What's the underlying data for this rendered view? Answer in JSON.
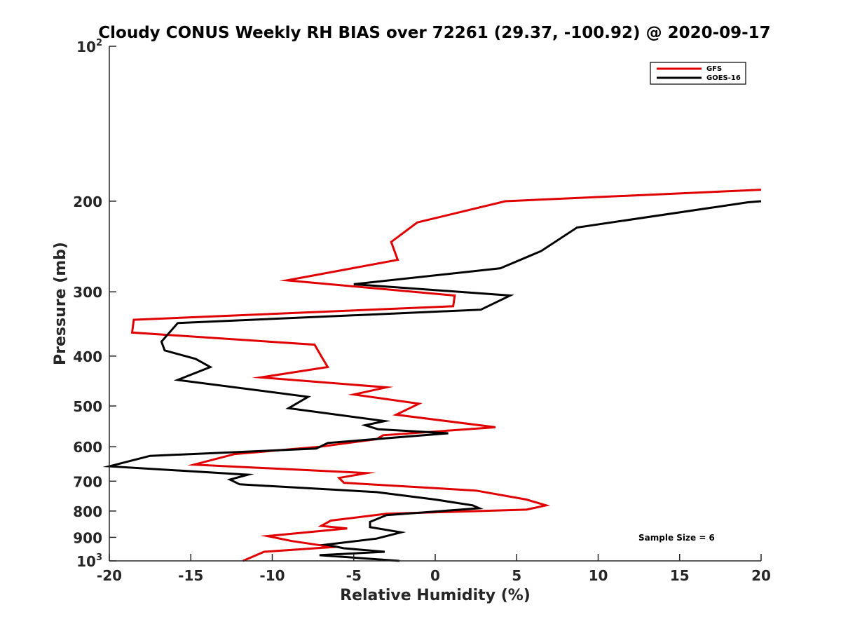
{
  "chart_data": {
    "type": "line",
    "title": "Cloudy CONUS Weekly RH BIAS over 72261 (29.37, -100.92) @ 2020-09-17",
    "xlabel": "Relative Humidity (%)",
    "ylabel": "Pressure (mb)",
    "xlim": [
      -20,
      20
    ],
    "ylim": [
      100,
      1000
    ],
    "y_scale": "log",
    "y_reversed": true,
    "grid": false,
    "legend_position": "top-right",
    "x_ticks": [
      "-20",
      "-15",
      "-10",
      "-5",
      "0",
      "5",
      "10",
      "15",
      "20"
    ],
    "y_ticks": [
      {
        "value": 100,
        "label_base": "10",
        "label_exp": "2"
      },
      {
        "value": 200,
        "label_base": "200",
        "label_exp": ""
      },
      {
        "value": 300,
        "label_base": "300",
        "label_exp": ""
      },
      {
        "value": 400,
        "label_base": "400",
        "label_exp": ""
      },
      {
        "value": 500,
        "label_base": "500",
        "label_exp": ""
      },
      {
        "value": 600,
        "label_base": "600",
        "label_exp": ""
      },
      {
        "value": 700,
        "label_base": "700",
        "label_exp": ""
      },
      {
        "value": 800,
        "label_base": "800",
        "label_exp": ""
      },
      {
        "value": 900,
        "label_base": "900",
        "label_exp": ""
      },
      {
        "value": 1000,
        "label_base": "10",
        "label_exp": "3"
      }
    ],
    "annotation": "Sample Size = 6",
    "series": [
      {
        "name": "GFS",
        "color": "#e00000",
        "points": [
          [
            20,
            190
          ],
          [
            4.3,
            200
          ],
          [
            -1.1,
            220
          ],
          [
            -2.7,
            240
          ],
          [
            -2.3,
            260
          ],
          [
            -9.1,
            285
          ],
          [
            1.2,
            305
          ],
          [
            1.1,
            320
          ],
          [
            -18.5,
            340
          ],
          [
            -18.6,
            360
          ],
          [
            -7.4,
            380
          ],
          [
            -7.0,
            400
          ],
          [
            -6.6,
            420
          ],
          [
            -10.7,
            440
          ],
          [
            -3.0,
            460
          ],
          [
            -5.0,
            475
          ],
          [
            -1.0,
            495
          ],
          [
            -2.4,
            520
          ],
          [
            3.7,
            550
          ],
          [
            -3.2,
            570
          ],
          [
            -3.6,
            580
          ],
          [
            -7.1,
            600
          ],
          [
            -12.3,
            620
          ],
          [
            -14.8,
            650
          ],
          [
            -4.2,
            675
          ],
          [
            -5.9,
            690
          ],
          [
            -5.6,
            705
          ],
          [
            2.5,
            730
          ],
          [
            5.6,
            760
          ],
          [
            6.8,
            780
          ],
          [
            5.6,
            795
          ],
          [
            -3.0,
            810
          ],
          [
            -6.4,
            835
          ],
          [
            -7.0,
            855
          ],
          [
            -5.4,
            865
          ],
          [
            -10.3,
            895
          ],
          [
            -8.8,
            915
          ],
          [
            -6.3,
            940
          ],
          [
            -10.5,
            960
          ],
          [
            -11.8,
            1000
          ]
        ]
      },
      {
        "name": "GOES-16",
        "color": "#000000",
        "points": [
          [
            20,
            200
          ],
          [
            19.2,
            201
          ],
          [
            8.7,
            225
          ],
          [
            6.5,
            250
          ],
          [
            4.0,
            270
          ],
          [
            -5.0,
            290
          ],
          [
            4.6,
            305
          ],
          [
            2.8,
            325
          ],
          [
            -15.8,
            345
          ],
          [
            -16.8,
            375
          ],
          [
            -16.6,
            390
          ],
          [
            -14.7,
            405
          ],
          [
            -13.8,
            420
          ],
          [
            -15.8,
            445
          ],
          [
            -7.8,
            480
          ],
          [
            -9.0,
            505
          ],
          [
            -3.1,
            535
          ],
          [
            -4.3,
            545
          ],
          [
            -3.5,
            555
          ],
          [
            0.8,
            565
          ],
          [
            -6.6,
            590
          ],
          [
            -7.3,
            605
          ],
          [
            -17.5,
            625
          ],
          [
            -20.0,
            655
          ],
          [
            -11.5,
            680
          ],
          [
            -12.6,
            695
          ],
          [
            -12.0,
            710
          ],
          [
            -3.6,
            735
          ],
          [
            0.0,
            760
          ],
          [
            2.3,
            780
          ],
          [
            2.7,
            790
          ],
          [
            -3.0,
            815
          ],
          [
            -4.0,
            840
          ],
          [
            -4.0,
            860
          ],
          [
            -2.1,
            880
          ],
          [
            -3.6,
            905
          ],
          [
            -6.7,
            930
          ],
          [
            -5.6,
            945
          ],
          [
            -3.1,
            960
          ],
          [
            -7.1,
            975
          ],
          [
            -2.2,
            1000
          ]
        ]
      }
    ]
  }
}
